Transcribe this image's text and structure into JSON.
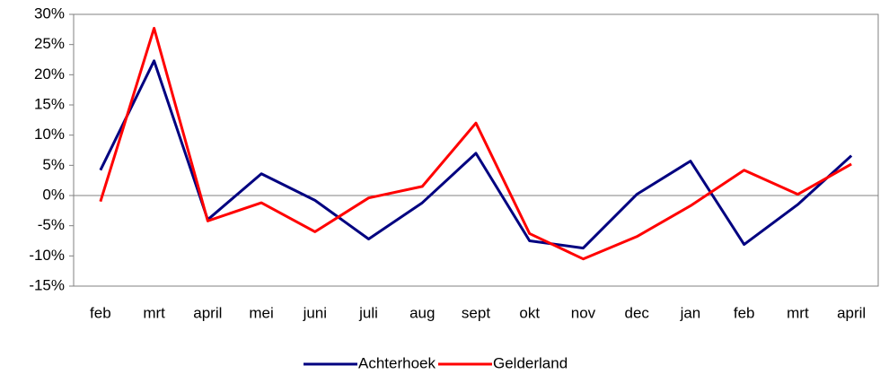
{
  "chart_data": {
    "type": "line",
    "categories": [
      "feb",
      "mrt",
      "april",
      "mei",
      "juni",
      "juli",
      "aug",
      "sept",
      "okt",
      "nov",
      "dec",
      "jan",
      "feb",
      "mrt",
      "april"
    ],
    "series": [
      {
        "name": "Achterhoek",
        "color": "#000080",
        "values": [
          4.2,
          22.3,
          -4,
          3.6,
          -0.8,
          -7.2,
          -1.2,
          7,
          -7.5,
          -8.7,
          0.2,
          5.7,
          -8.1,
          -1.5,
          6.6
        ]
      },
      {
        "name": "Gelderland",
        "color": "#ff0000",
        "values": [
          -1,
          27.7,
          -4.2,
          -1.2,
          -6,
          -0.4,
          1.5,
          12,
          -6.3,
          -10.5,
          -6.8,
          -1.7,
          4.2,
          0.2,
          5.2
        ]
      }
    ],
    "ylim": [
      -15,
      30
    ],
    "yticks": [
      {
        "value": -15,
        "label": "-15%"
      },
      {
        "value": -10,
        "label": "-10%"
      },
      {
        "value": -5,
        "label": "-5%"
      },
      {
        "value": 0,
        "label": "0%"
      },
      {
        "value": 5,
        "label": "5%"
      },
      {
        "value": 10,
        "label": "10%"
      },
      {
        "value": 15,
        "label": "15%"
      },
      {
        "value": 20,
        "label": "20%"
      },
      {
        "value": 25,
        "label": "25%"
      },
      {
        "value": 30,
        "label": "30%"
      }
    ],
    "legend": "bottom"
  }
}
